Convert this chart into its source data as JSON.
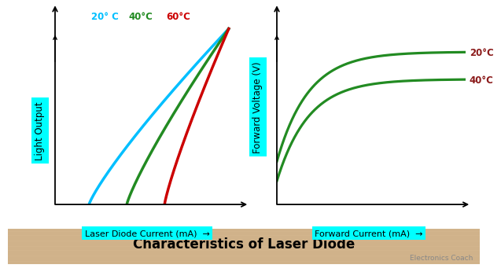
{
  "title": "Characteristics of Laser Diode",
  "title_bg": "#D2B48C",
  "watermark": "Electronics Coach",
  "left_ylabel": "Light Output",
  "left_xlabel": "Laser Diode Current (mA)",
  "right_ylabel": "Forward Voltage (V)",
  "right_xlabel": "Forward Current (mA)",
  "left_curves": [
    {
      "label": "20° C",
      "color": "#00BFFF",
      "thresh": 0.18
    },
    {
      "label": "40°C",
      "color": "#228B22",
      "thresh": 0.38
    },
    {
      "label": "60°C",
      "color": "#CC0000",
      "thresh": 0.58
    }
  ],
  "right_curves": [
    {
      "label": "20°C",
      "color": "#228B22",
      "scale": 1.05,
      "shift": 0.1
    },
    {
      "label": "40°C",
      "color": "#228B22",
      "scale": 0.88,
      "shift": 0.05
    }
  ],
  "right_label_colors": [
    "#8B1A1A",
    "#8B1A1A"
  ],
  "bg_color": "#FFFFFF",
  "cyan": "#00FFFF"
}
